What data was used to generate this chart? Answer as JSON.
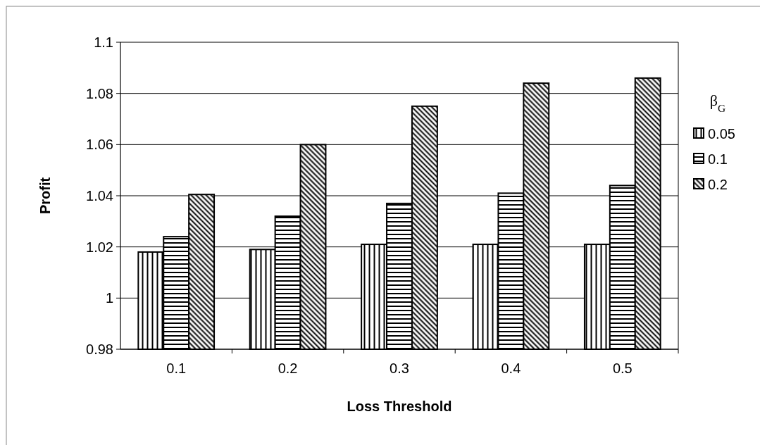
{
  "chart_data": {
    "type": "bar",
    "xlabel": "Loss Threshold",
    "ylabel": "Profit",
    "legend_title": "β$_{G}$",
    "categories": [
      "0.1",
      "0.2",
      "0.3",
      "0.4",
      "0.5"
    ],
    "series": [
      {
        "name": "0.05",
        "color": "#000000",
        "values": [
          1.018,
          1.019,
          1.021,
          1.021,
          1.021
        ]
      },
      {
        "name": "0.1",
        "color": "#000000",
        "values": [
          1.024,
          1.032,
          1.037,
          1.041,
          1.044
        ]
      },
      {
        "name": "0.2",
        "color": "#000000",
        "values": [
          1.0405,
          1.06,
          1.075,
          1.084,
          1.086
        ]
      }
    ],
    "ylim": [
      0.98,
      1.1
    ],
    "yticks": [
      0.98,
      1,
      1.02,
      1.04,
      1.06,
      1.08,
      1.1
    ],
    "grid": "y",
    "legend": "right"
  }
}
